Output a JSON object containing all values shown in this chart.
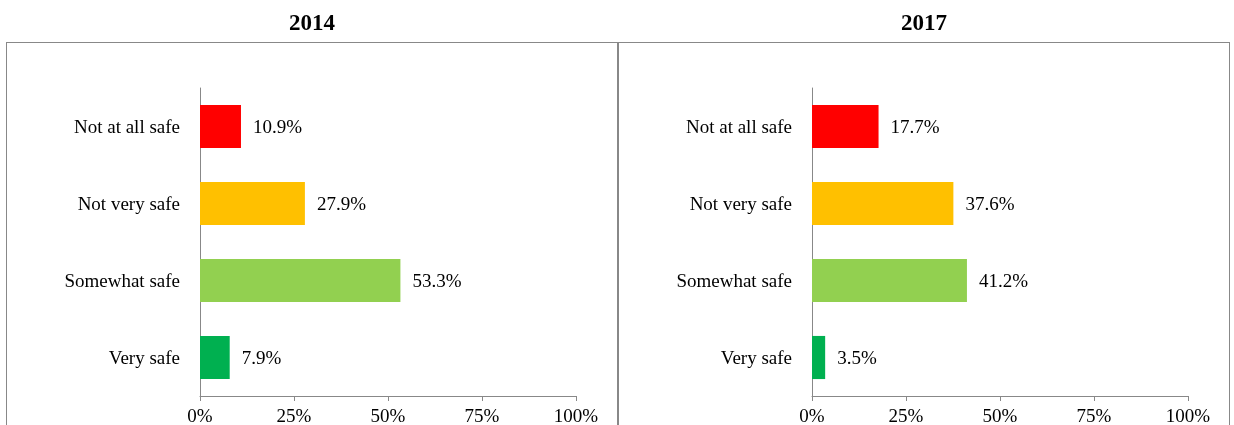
{
  "chart_data": [
    {
      "type": "bar",
      "orientation": "horizontal",
      "title": "2014",
      "categories": [
        "Not at all safe",
        "Not very safe",
        "Somewhat safe",
        "Very safe"
      ],
      "values": [
        10.9,
        27.9,
        53.3,
        7.9
      ],
      "colors": [
        "#ff0000",
        "#ffc000",
        "#92d050",
        "#00b050"
      ],
      "value_labels": [
        "10.9%",
        "27.9%",
        "53.3%",
        "7.9%"
      ],
      "xlim": [
        0,
        100
      ],
      "xticks": [
        {
          "value": 0,
          "label": "0%"
        },
        {
          "value": 25,
          "label": "25%"
        },
        {
          "value": 50,
          "label": "50%"
        },
        {
          "value": 75,
          "label": "75%"
        },
        {
          "value": 100,
          "label": "100%"
        }
      ]
    },
    {
      "type": "bar",
      "orientation": "horizontal",
      "title": "2017",
      "categories": [
        "Not at all safe",
        "Not very safe",
        "Somewhat safe",
        "Very safe"
      ],
      "values": [
        17.7,
        37.6,
        41.2,
        3.5
      ],
      "colors": [
        "#ff0000",
        "#ffc000",
        "#92d050",
        "#00b050"
      ],
      "value_labels": [
        "17.7%",
        "37.6%",
        "41.2%",
        "3.5%"
      ],
      "xlim": [
        0,
        100
      ],
      "xticks": [
        {
          "value": 0,
          "label": "0%"
        },
        {
          "value": 25,
          "label": "25%"
        },
        {
          "value": 50,
          "label": "50%"
        },
        {
          "value": 75,
          "label": "75%"
        },
        {
          "value": 100,
          "label": "100%"
        }
      ]
    }
  ]
}
